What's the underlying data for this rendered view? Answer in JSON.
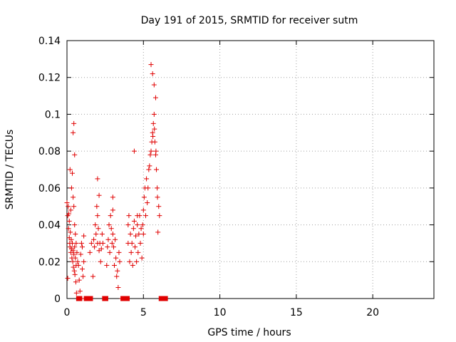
{
  "chart_data": {
    "type": "scatter",
    "title": "Day 191 of 2015, SRMTID for receiver sutm",
    "xlabel": "GPS time / hours",
    "ylabel": "SRMTID / TECUs",
    "xlim": [
      0,
      24
    ],
    "ylim": [
      0,
      0.14
    ],
    "xticks": [
      "0",
      "5",
      "10",
      "15",
      "20"
    ],
    "yticks": [
      "0",
      "0.02",
      "0.04",
      "0.06",
      "0.08",
      "0.1",
      "0.12",
      "0.14"
    ],
    "grid": true,
    "marker": "+",
    "colors": {
      "series": "#e00000",
      "grid": "#a0a0a0"
    },
    "series": [
      {
        "x": [
          0.0,
          0.05,
          0.05,
          0.08,
          0.1,
          0.12,
          0.15,
          0.15,
          0.18,
          0.2,
          0.22,
          0.25,
          0.25,
          0.28,
          0.3,
          0.3,
          0.32,
          0.35,
          0.35,
          0.38,
          0.4,
          0.4,
          0.42,
          0.45,
          0.45,
          0.48,
          0.5,
          0.5,
          0.52,
          0.55,
          0.55,
          0.58,
          0.6,
          0.6,
          0.62,
          0.65,
          0.7,
          0.75,
          0.8,
          0.85,
          0.9,
          0.95,
          1.0,
          1.0,
          1.05,
          1.1,
          1.1,
          1.15,
          1.2,
          1.25,
          1.3,
          1.35,
          1.5,
          1.6,
          1.7,
          1.75,
          1.8,
          1.85,
          1.9,
          1.95,
          2.0,
          2.0,
          2.05,
          2.1,
          2.1,
          2.15,
          2.2,
          2.25,
          2.3,
          2.35,
          2.5,
          2.6,
          2.65,
          2.7,
          2.75,
          2.8,
          2.85,
          2.9,
          2.95,
          3.0,
          3.0,
          3.05,
          3.1,
          3.15,
          3.2,
          3.25,
          3.3,
          3.35,
          3.4,
          3.45,
          3.6,
          3.8,
          3.9,
          4.0,
          4.0,
          4.05,
          4.1,
          4.15,
          4.2,
          4.25,
          4.3,
          4.35,
          4.4,
          4.45,
          4.5,
          4.55,
          4.6,
          4.65,
          4.7,
          4.75,
          4.8,
          4.85,
          4.9,
          4.95,
          5.0,
          5.0,
          5.05,
          5.1,
          5.15,
          5.2,
          5.25,
          5.3,
          5.35,
          5.4,
          5.45,
          5.5,
          5.55,
          5.6,
          5.62,
          5.65,
          5.7,
          5.72,
          5.75,
          5.8,
          5.82,
          5.85,
          5.9,
          5.92,
          5.95,
          6.0,
          6.05,
          0.2,
          0.4,
          0.45,
          0.5,
          2.0,
          3.0,
          4.4,
          4.6,
          5.5,
          5.6,
          5.7,
          5.8
        ],
        "y": [
          0.052,
          0.045,
          0.011,
          0.05,
          0.038,
          0.046,
          0.042,
          0.033,
          0.03,
          0.028,
          0.036,
          0.025,
          0.048,
          0.032,
          0.027,
          0.06,
          0.022,
          0.03,
          0.068,
          0.02,
          0.026,
          0.055,
          0.017,
          0.024,
          0.05,
          0.015,
          0.028,
          0.04,
          0.013,
          0.022,
          0.035,
          0.009,
          0.018,
          0.03,
          0.003,
          0.025,
          0.02,
          0.018,
          0.01,
          0.004,
          0.024,
          0.03,
          0.028,
          0.016,
          0.012,
          0.034,
          0.02,
          0.0,
          0.0,
          0.0,
          0.0,
          0.0,
          0.025,
          0.03,
          0.012,
          0.032,
          0.028,
          0.04,
          0.035,
          0.05,
          0.045,
          0.03,
          0.038,
          0.026,
          0.056,
          0.03,
          0.02,
          0.027,
          0.035,
          0.03,
          0.0,
          0.018,
          0.028,
          0.032,
          0.04,
          0.025,
          0.045,
          0.038,
          0.03,
          0.035,
          0.048,
          0.028,
          0.018,
          0.032,
          0.022,
          0.012,
          0.015,
          0.006,
          0.025,
          0.02,
          0.0,
          0.0,
          0.0,
          0.03,
          0.04,
          0.045,
          0.02,
          0.035,
          0.025,
          0.03,
          0.018,
          0.038,
          0.042,
          0.028,
          0.034,
          0.02,
          0.04,
          0.025,
          0.035,
          0.045,
          0.03,
          0.038,
          0.022,
          0.04,
          0.035,
          0.048,
          0.055,
          0.06,
          0.045,
          0.065,
          0.052,
          0.06,
          0.07,
          0.072,
          0.078,
          0.08,
          0.085,
          0.09,
          0.088,
          0.095,
          0.1,
          0.092,
          0.085,
          0.078,
          0.08,
          0.07,
          0.06,
          0.055,
          0.036,
          0.05,
          0.045,
          0.07,
          0.09,
          0.095,
          0.078,
          0.065,
          0.055,
          0.08,
          0.045,
          0.127,
          0.122,
          0.116,
          0.109
        ]
      }
    ],
    "flags_at_zero": [
      [
        0.6,
        1.0
      ],
      [
        1.1,
        1.7
      ],
      [
        2.3,
        2.7
      ],
      [
        3.5,
        4.1
      ],
      [
        6.0,
        6.6
      ]
    ]
  }
}
